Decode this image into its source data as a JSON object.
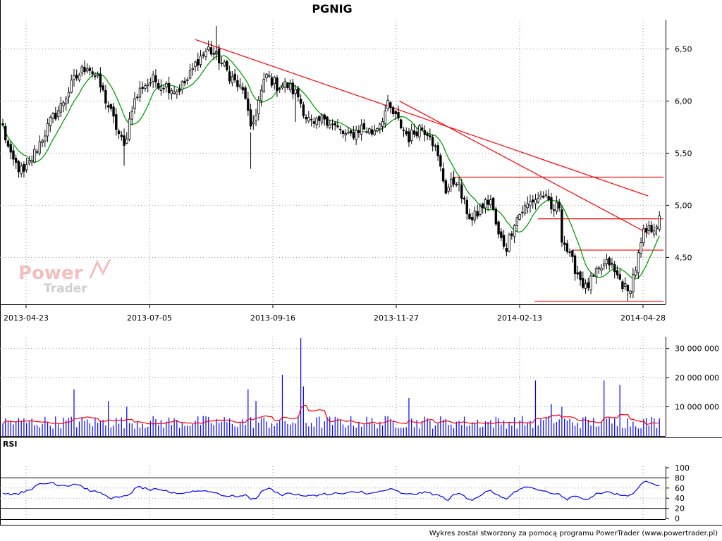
{
  "chart_data": [
    {
      "type": "candlestick",
      "title": "PGNIG",
      "x_tick_labels": [
        "2013-04-23",
        "2013-07-05",
        "2013-09-16",
        "2013-11-27",
        "2014-02-13",
        "2014-04-28"
      ],
      "y_tick_labels": [
        "4,50",
        "5,00",
        "5,50",
        "6,00",
        "6,50"
      ],
      "ylim": [
        4.05,
        6.78
      ],
      "grid": true,
      "price_path_anchors": [
        [
          0,
          5.75
        ],
        [
          3,
          5.45
        ],
        [
          8,
          5.3
        ],
        [
          13,
          5.55
        ],
        [
          18,
          5.8
        ],
        [
          22,
          5.95
        ],
        [
          27,
          6.2
        ],
        [
          32,
          6.35
        ],
        [
          36,
          6.2
        ],
        [
          40,
          5.95
        ],
        [
          43,
          5.75
        ],
        [
          46,
          5.55
        ],
        [
          49,
          5.95
        ],
        [
          53,
          6.15
        ],
        [
          57,
          6.2
        ],
        [
          62,
          6.15
        ],
        [
          66,
          6.1
        ],
        [
          70,
          6.2
        ],
        [
          74,
          6.4
        ],
        [
          78,
          6.5
        ],
        [
          82,
          6.4
        ],
        [
          86,
          6.25
        ],
        [
          89,
          6.15
        ],
        [
          92,
          6.05
        ],
        [
          94,
          5.7
        ],
        [
          97,
          6.0
        ],
        [
          100,
          6.25
        ],
        [
          104,
          6.15
        ],
        [
          108,
          6.15
        ],
        [
          112,
          6.05
        ],
        [
          115,
          5.85
        ],
        [
          118,
          5.75
        ],
        [
          122,
          5.85
        ],
        [
          126,
          5.75
        ],
        [
          131,
          5.65
        ],
        [
          136,
          5.75
        ],
        [
          140,
          5.7
        ],
        [
          143,
          5.8
        ],
        [
          146,
          5.95
        ],
        [
          150,
          5.8
        ],
        [
          154,
          5.65
        ],
        [
          158,
          5.75
        ],
        [
          162,
          5.7
        ],
        [
          165,
          5.45
        ],
        [
          168,
          5.15
        ],
        [
          172,
          5.25
        ],
        [
          175,
          5.0
        ],
        [
          178,
          4.85
        ],
        [
          182,
          5.0
        ],
        [
          185,
          5.05
        ],
        [
          188,
          4.7
        ],
        [
          191,
          4.6
        ],
        [
          194,
          4.85
        ],
        [
          197,
          4.95
        ],
        [
          201,
          5.05
        ],
        [
          205,
          5.1
        ],
        [
          208,
          4.95
        ],
        [
          211,
          5.0
        ],
        [
          212,
          4.7
        ],
        [
          215,
          4.5
        ],
        [
          218,
          4.35
        ],
        [
          221,
          4.2
        ],
        [
          224,
          4.3
        ],
        [
          227,
          4.4
        ],
        [
          230,
          4.45
        ],
        [
          232,
          4.35
        ],
        [
          235,
          4.25
        ],
        [
          237,
          4.15
        ],
        [
          240,
          4.4
        ],
        [
          243,
          4.72
        ],
        [
          246,
          4.78
        ],
        [
          249,
          4.85
        ]
      ],
      "ma_label": "",
      "trendlines": [
        {
          "from": [
            "2013-08-01",
            6.59
          ],
          "to": [
            "2014-05-01",
            5.09
          ],
          "color": "#ff0000"
        },
        {
          "from": [
            "2013-11-29",
            6.0
          ],
          "to": [
            "2014-05-01",
            4.73
          ],
          "color": "#ff0000"
        }
      ],
      "horizontal_levels": [
        {
          "value": 5.27,
          "from": "2014-01-03"
        },
        {
          "value": 4.87,
          "from": "2014-02-24"
        },
        {
          "value": 4.57,
          "from": "2014-03-17"
        },
        {
          "value": 4.08,
          "from": "2014-02-22"
        }
      ]
    },
    {
      "type": "bar",
      "name": "volume",
      "y_tick_labels": [
        "10 000 000",
        "20 000 000",
        "30 000 000"
      ],
      "ylim": [
        0,
        34000000
      ],
      "spikes": [
        [
          27,
          16000000
        ],
        [
          40,
          12000000
        ],
        [
          47,
          10000000
        ],
        [
          93,
          16000000
        ],
        [
          96,
          12000000
        ],
        [
          106,
          21000000
        ],
        [
          113,
          33500000
        ],
        [
          114,
          17000000
        ],
        [
          154,
          13000000
        ],
        [
          202,
          19000000
        ],
        [
          208,
          11000000
        ],
        [
          212,
          10000000
        ],
        [
          228,
          19000000
        ],
        [
          234,
          17500000
        ]
      ],
      "ma_color": "#ff0000",
      "bar_color": "#0000ff"
    },
    {
      "type": "line",
      "name": "RSI",
      "title": "RSI",
      "y_tick_labels": [
        "0",
        "20",
        "40",
        "60",
        "80",
        "100"
      ],
      "ylim": [
        0,
        100
      ],
      "reference_levels": [
        20,
        80
      ],
      "color": "#0000ff"
    }
  ],
  "footer": "Wykres został stworzony za pomocą programu PowerTrader (www.powertrader.pl)",
  "logo": {
    "power": "Power",
    "trader": "Trader"
  },
  "colors": {
    "background": "#ffffff",
    "grid": "#9a9a9a",
    "candle": "#000000",
    "ma": "#00a000",
    "trendline": "#ff0000",
    "volume": "#0000ff",
    "rsi": "#0000ff"
  }
}
